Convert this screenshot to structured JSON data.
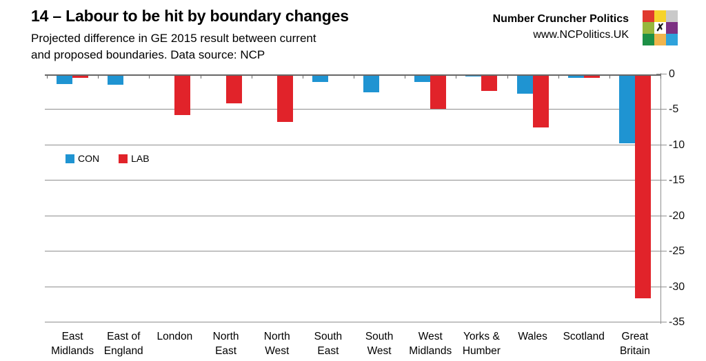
{
  "header": {
    "title": "14 – Labour to be hit by boundary changes",
    "subtitle_line1": "Projected difference in GE 2015 result between current",
    "subtitle_line2": "and proposed boundaries. Data source: NCP",
    "brand": {
      "name": "Number Cruncher Politics",
      "url": "www.NCPolitics.UK",
      "logo_center_glyph": "✗",
      "logo_grid_colors": [
        [
          "#e0392e",
          "#f6d32b",
          "#c9c9c9"
        ],
        [
          "#97b73c",
          "#ffffff",
          "#7c3183"
        ],
        [
          "#1d9046",
          "#f0b54d",
          "#2ea2db"
        ]
      ]
    }
  },
  "chart_data": {
    "type": "bar",
    "title": "14 – Labour to be hit by boundary changes",
    "subtitle": "Projected difference in GE 2015 result between current and proposed boundaries. Data source: NCP",
    "categories": [
      "East Midlands",
      "East of England",
      "London",
      "North East",
      "North West",
      "South East",
      "South West",
      "West Midlands",
      "Yorks & Humber",
      "Wales",
      "Scotland",
      "Great Britain"
    ],
    "categories_display": [
      [
        "East",
        "Midlands"
      ],
      [
        "East of",
        "England"
      ],
      [
        "London",
        ""
      ],
      [
        "North",
        "East"
      ],
      [
        "North",
        "West"
      ],
      [
        "South",
        "East"
      ],
      [
        "South",
        "West"
      ],
      [
        "West",
        "Midlands"
      ],
      [
        "Yorks &",
        "Humber"
      ],
      [
        "Wales",
        ""
      ],
      [
        "Scotland",
        ""
      ],
      [
        "Great",
        "Britain"
      ]
    ],
    "series": [
      {
        "name": "CON",
        "color": "#1f94d2",
        "values": [
          -1.4,
          -1.5,
          0,
          0,
          0,
          -1.1,
          -2.5,
          -1.1,
          -0.3,
          -2.7,
          -0.5,
          -9.7
        ]
      },
      {
        "name": "LAB",
        "color": "#e1232a",
        "values": [
          -0.5,
          0,
          -5.7,
          -4.1,
          -6.7,
          0,
          0,
          -4.9,
          -2.3,
          -7.5,
          -0.5,
          -31.6
        ]
      }
    ],
    "xlabel": "",
    "ylabel": "",
    "ylim": [
      -35,
      0
    ],
    "yticks": [
      0,
      -5,
      -10,
      -15,
      -20,
      -25,
      -30,
      -35
    ],
    "ytick_labels": [
      "0",
      "-5",
      "-10",
      "-15",
      "-20",
      "-25",
      "-30",
      "-35"
    ],
    "grid": "horizontal",
    "axis_side": "right",
    "legend_position": "inside-left-middle",
    "gridline_color": "#8e8e8e"
  }
}
